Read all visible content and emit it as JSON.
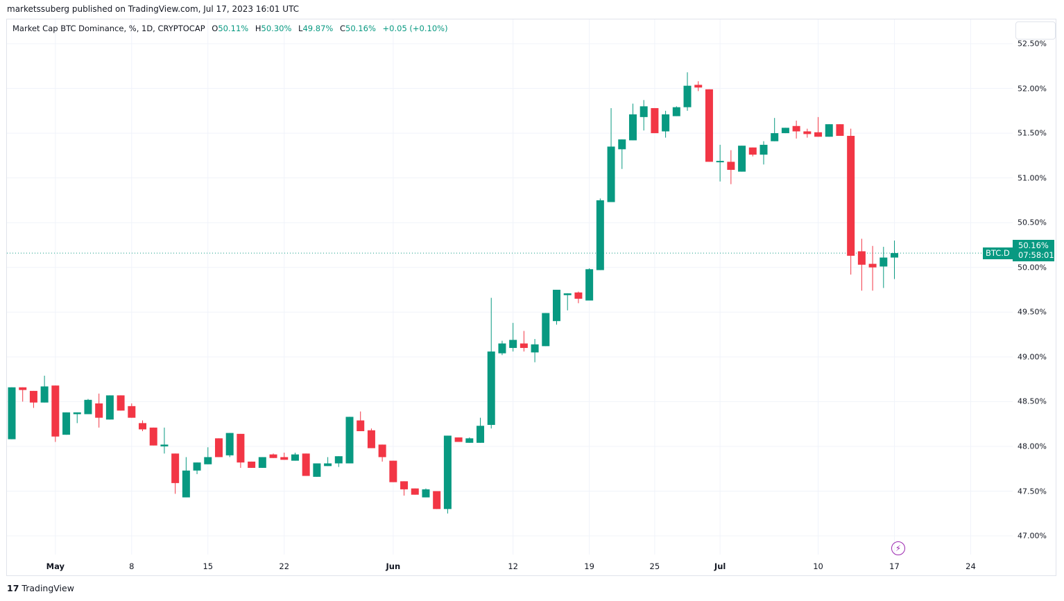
{
  "header": {
    "published": "marketssuberg published on TradingView.com, Jul 17, 2023 16:01 UTC"
  },
  "legend": {
    "symbol": "Market Cap BTC Dominance, %, 1D, CRYPTOCAP",
    "o_label": "O",
    "o": "50.11%",
    "h_label": "H",
    "h": "50.30%",
    "l_label": "L",
    "l": "49.87%",
    "c_label": "C",
    "c": "50.16%",
    "change": "+0.05 (+0.10%)"
  },
  "badge": {
    "symbol": "BTC.D",
    "price": "50.16%",
    "countdown": "07:58:01"
  },
  "footer": {
    "logo": "TradingView"
  },
  "colors": {
    "up": "#089981",
    "down": "#f23645",
    "grid": "#f0f3fa"
  },
  "chart_data": {
    "type": "candlestick",
    "title": "Market Cap BTC Dominance, %, 1D, CRYPTOCAP",
    "start_date": "2023-04-27",
    "interval": "1D",
    "ylim": [
      46.8,
      52.65
    ],
    "last_price": 50.16,
    "y_ticks": [
      "52.50%",
      "52.00%",
      "51.50%",
      "51.00%",
      "50.50%",
      "50.00%",
      "49.50%",
      "49.00%",
      "48.50%",
      "48.00%",
      "47.50%",
      "47.00%"
    ],
    "y_tick_values": [
      52.5,
      52,
      51.5,
      51,
      50.5,
      50,
      49.5,
      49,
      48.5,
      48,
      47.5,
      47
    ],
    "x_ticks": [
      {
        "label": "May",
        "day": 4,
        "bold": true
      },
      {
        "label": "8",
        "day": 11
      },
      {
        "label": "15",
        "day": 18
      },
      {
        "label": "22",
        "day": 25
      },
      {
        "label": "Jun",
        "day": 35,
        "bold": true
      },
      {
        "label": "12",
        "day": 46
      },
      {
        "label": "19",
        "day": 53
      },
      {
        "label": "25",
        "day": 59
      },
      {
        "label": "Jul",
        "day": 65,
        "bold": true
      },
      {
        "label": "10",
        "day": 74
      },
      {
        "label": "17",
        "day": 81
      },
      {
        "label": "24",
        "day": 88
      }
    ],
    "ohlc_fields": [
      "open",
      "high",
      "low",
      "close"
    ],
    "ohlc": [
      [
        48.08,
        48.66,
        48.08,
        48.66
      ],
      [
        48.66,
        48.66,
        48.5,
        48.63
      ],
      [
        48.62,
        48.62,
        48.43,
        48.49
      ],
      [
        48.49,
        48.79,
        48.49,
        48.67
      ],
      [
        48.68,
        48.68,
        48.05,
        48.11
      ],
      [
        48.13,
        48.38,
        48.13,
        48.38
      ],
      [
        48.36,
        48.38,
        48.26,
        48.38
      ],
      [
        48.36,
        48.53,
        48.36,
        48.52
      ],
      [
        48.48,
        48.59,
        48.21,
        48.32
      ],
      [
        48.3,
        48.57,
        48.3,
        48.57
      ],
      [
        48.57,
        48.57,
        48.4,
        48.4
      ],
      [
        48.45,
        48.48,
        48.32,
        48.32
      ],
      [
        48.26,
        48.29,
        48.17,
        48.19
      ],
      [
        48.21,
        48.21,
        48.01,
        48.01
      ],
      [
        48.0,
        48.21,
        47.92,
        48.02
      ],
      [
        47.92,
        47.92,
        47.47,
        47.59
      ],
      [
        47.43,
        47.88,
        47.43,
        47.73
      ],
      [
        47.73,
        47.82,
        47.69,
        47.82
      ],
      [
        47.8,
        47.99,
        47.8,
        47.88
      ],
      [
        48.09,
        48.09,
        47.88,
        47.88
      ],
      [
        47.9,
        48.15,
        47.88,
        48.15
      ],
      [
        48.14,
        48.14,
        47.76,
        47.82
      ],
      [
        47.83,
        47.83,
        47.76,
        47.76
      ],
      [
        47.76,
        47.88,
        47.76,
        47.88
      ],
      [
        47.91,
        47.92,
        47.87,
        47.87
      ],
      [
        47.88,
        47.93,
        47.85,
        47.85
      ],
      [
        47.84,
        47.93,
        47.84,
        47.91
      ],
      [
        47.92,
        47.92,
        47.67,
        47.67
      ],
      [
        47.66,
        47.81,
        47.66,
        47.81
      ],
      [
        47.78,
        47.88,
        47.78,
        47.81
      ],
      [
        47.81,
        47.89,
        47.77,
        47.89
      ],
      [
        47.81,
        48.33,
        47.81,
        48.33
      ],
      [
        48.29,
        48.39,
        48.17,
        48.17
      ],
      [
        48.18,
        48.2,
        47.98,
        47.98
      ],
      [
        48.02,
        48.02,
        47.83,
        47.88
      ],
      [
        47.84,
        47.84,
        47.6,
        47.6
      ],
      [
        47.61,
        47.61,
        47.45,
        47.52
      ],
      [
        47.53,
        47.53,
        47.46,
        47.46
      ],
      [
        47.43,
        47.53,
        47.43,
        47.52
      ],
      [
        47.5,
        47.5,
        47.3,
        47.3
      ],
      [
        47.3,
        48.12,
        47.25,
        48.12
      ],
      [
        48.1,
        48.1,
        48.05,
        48.05
      ],
      [
        48.04,
        48.1,
        48.04,
        48.09
      ],
      [
        48.04,
        48.32,
        48.04,
        48.23
      ],
      [
        48.24,
        49.66,
        48.2,
        49.06
      ],
      [
        49.04,
        49.18,
        49.02,
        49.15
      ],
      [
        49.1,
        49.38,
        49.06,
        49.19
      ],
      [
        49.15,
        49.29,
        49.06,
        49.1
      ],
      [
        49.05,
        49.2,
        48.94,
        49.14
      ],
      [
        49.12,
        49.49,
        49.12,
        49.49
      ],
      [
        49.4,
        49.75,
        49.36,
        49.75
      ],
      [
        49.69,
        49.71,
        49.52,
        49.71
      ],
      [
        49.72,
        49.73,
        49.6,
        49.65
      ],
      [
        49.63,
        49.99,
        49.63,
        49.98
      ],
      [
        49.97,
        50.77,
        49.97,
        50.75
      ],
      [
        50.73,
        51.78,
        50.73,
        51.35
      ],
      [
        51.32,
        51.43,
        51.1,
        51.43
      ],
      [
        51.42,
        51.83,
        51.42,
        51.71
      ],
      [
        51.68,
        51.87,
        51.53,
        51.8
      ],
      [
        51.78,
        51.78,
        51.5,
        51.5
      ],
      [
        51.52,
        51.75,
        51.45,
        51.71
      ],
      [
        51.69,
        51.8,
        51.69,
        51.79
      ],
      [
        51.79,
        52.18,
        51.75,
        52.03
      ],
      [
        52.04,
        52.08,
        51.97,
        52.01
      ],
      [
        51.99,
        51.99,
        51.18,
        51.18
      ],
      [
        51.18,
        51.37,
        50.96,
        51.19
      ],
      [
        51.18,
        51.31,
        50.93,
        51.09
      ],
      [
        51.07,
        51.36,
        51.07,
        51.36
      ],
      [
        51.34,
        51.34,
        51.24,
        51.26
      ],
      [
        51.26,
        51.41,
        51.15,
        51.37
      ],
      [
        51.41,
        51.67,
        51.41,
        51.5
      ],
      [
        51.5,
        51.56,
        51.5,
        51.56
      ],
      [
        51.58,
        51.64,
        51.44,
        51.52
      ],
      [
        51.52,
        51.55,
        51.45,
        51.49
      ],
      [
        51.51,
        51.68,
        51.46,
        51.46
      ],
      [
        51.46,
        51.6,
        51.46,
        51.6
      ],
      [
        51.6,
        51.6,
        51.47,
        51.47
      ],
      [
        51.47,
        51.55,
        49.92,
        50.13
      ],
      [
        50.18,
        50.32,
        49.74,
        50.03
      ],
      [
        50.04,
        50.24,
        49.74,
        50.0
      ],
      [
        50.01,
        50.23,
        49.77,
        50.11
      ],
      [
        50.11,
        50.3,
        49.87,
        50.16
      ]
    ]
  }
}
